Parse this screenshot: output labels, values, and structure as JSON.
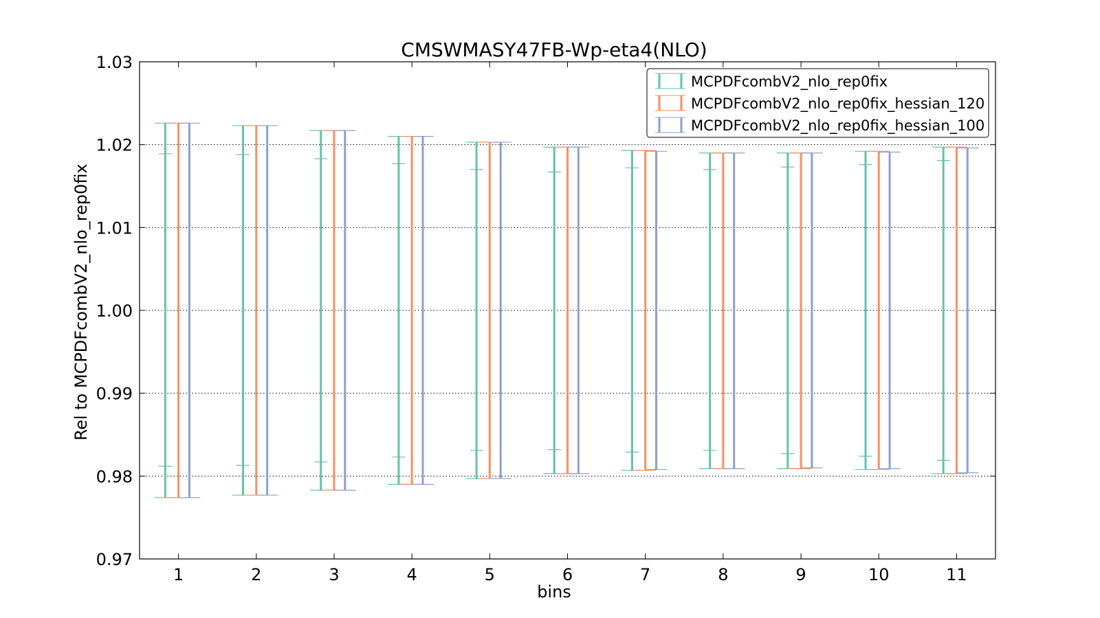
{
  "chart_data": {
    "type": "errorbar",
    "title": "CMSWMASY47FB-Wp-eta4(NLO)",
    "xlabel": "bins",
    "ylabel": "Rel to MCPDFcombV2_nlo_rep0fix",
    "ylim": [
      0.97,
      1.03
    ],
    "yticks": [
      "0.97",
      "0.98",
      "0.99",
      "1.00",
      "1.01",
      "1.02",
      "1.03"
    ],
    "xlim": [
      0.5,
      11.5
    ],
    "categories": [
      "1",
      "2",
      "3",
      "4",
      "5",
      "6",
      "7",
      "8",
      "9",
      "10",
      "11"
    ],
    "grid": "y-dotted",
    "legend_position": "top-right",
    "series": [
      {
        "name": "MCPDFcombV2_nlo_rep0fix",
        "color": "#66c2a5",
        "upper": [
          1.0226,
          1.0223,
          1.0217,
          1.021,
          1.0203,
          1.0197,
          1.0193,
          1.019,
          1.019,
          1.0192,
          1.0197
        ],
        "lower": [
          0.9774,
          0.9777,
          0.9783,
          0.979,
          0.9797,
          0.9803,
          0.9807,
          0.9809,
          0.9809,
          0.9808,
          0.9803
        ],
        "inner_upper": [
          1.0189,
          1.0188,
          1.0183,
          1.0177,
          1.017,
          1.0167,
          1.0172,
          1.017,
          1.0173,
          1.0176,
          1.0181
        ],
        "inner_lower": [
          0.9812,
          0.9813,
          0.9817,
          0.9823,
          0.9831,
          0.9832,
          0.9829,
          0.9831,
          0.9827,
          0.9824,
          0.9819
        ]
      },
      {
        "name": "MCPDFcombV2_nlo_rep0fix_hessian_120",
        "color": "#fc8d62",
        "upper": [
          1.0226,
          1.0223,
          1.0217,
          1.021,
          1.0203,
          1.0197,
          1.0193,
          1.019,
          1.019,
          1.0192,
          1.0197
        ],
        "lower": [
          0.9774,
          0.9777,
          0.9783,
          0.979,
          0.9797,
          0.9803,
          0.9807,
          0.9809,
          0.9809,
          0.9808,
          0.9803
        ]
      },
      {
        "name": "MCPDFcombV2_nlo_rep0fix_hessian_100",
        "color": "#8da0cb",
        "upper": [
          1.0226,
          1.0223,
          1.0217,
          1.021,
          1.0203,
          1.0197,
          1.0192,
          1.019,
          1.019,
          1.0191,
          1.0196
        ],
        "lower": [
          0.9774,
          0.9777,
          0.9783,
          0.979,
          0.9797,
          0.9803,
          0.9808,
          0.9809,
          0.981,
          0.9809,
          0.9804
        ]
      }
    ]
  }
}
